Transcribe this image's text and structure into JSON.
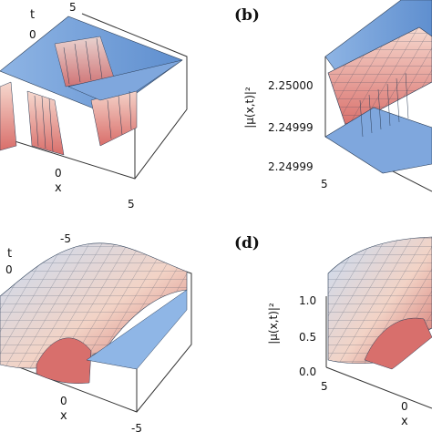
{
  "panels": {
    "a": {
      "t_label": "t",
      "t_tick": "0",
      "top_tick": "5",
      "x_label": "x",
      "x_tick_0": "0",
      "x_tick_5": "5"
    },
    "b": {
      "letter": "(b)",
      "ylabel": "|μ(x,t)|²",
      "z_ticks": [
        "2.25000",
        "2.24999",
        "2.24999"
      ],
      "x_tick": "5"
    },
    "c": {
      "t_label": "t",
      "t_tick": "0",
      "top_tick": "-5",
      "x_label": "x",
      "x_tick_0": "0",
      "x_tick_neg5": "-5"
    },
    "d": {
      "letter": "(d)",
      "ylabel": "|μ(x,t)|²",
      "z_ticks": [
        "1.0",
        "0.5",
        "0.0"
      ],
      "x_tick_5": "5",
      "x_tick_0": "0",
      "x_label": "x"
    }
  },
  "colors": {
    "surface_light": "#a9c8ea",
    "surface_blue": "#6f9bd6",
    "surface_peach": "#f3c8b8",
    "surface_red": "#e07f78",
    "mesh": "#2c3e57"
  }
}
